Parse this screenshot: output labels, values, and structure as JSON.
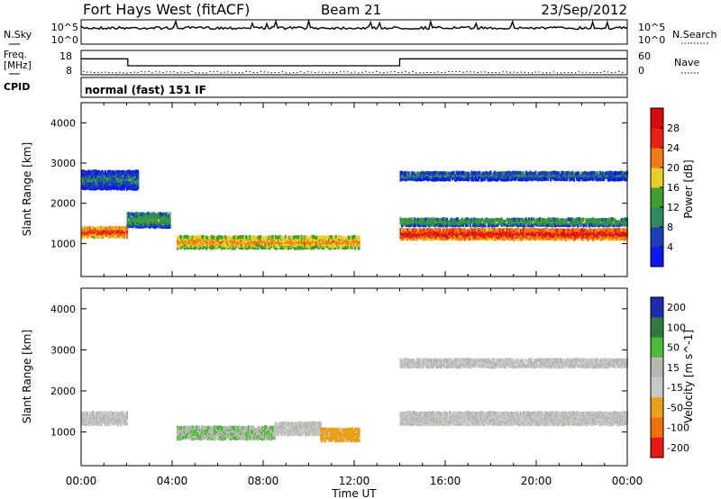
{
  "header": {
    "title": "Fort Hays West (fitACF)",
    "beam": "Beam 21",
    "date": "23/Sep/2012"
  },
  "noise_panel": {
    "left_label": "N.Sky",
    "right_label": "N.Search",
    "left_ticks": [
      "10^5",
      "10^0"
    ],
    "right_ticks": [
      "10^5",
      "10^0"
    ]
  },
  "freq_panel": {
    "left_label_line1": "Freq.",
    "left_label_line2": "[MHz]",
    "right_label": "Nave",
    "left_ticks": [
      "18",
      "8"
    ],
    "right_ticks": [
      "60",
      "0"
    ],
    "freq_segments": [
      {
        "start_hour": 0.0,
        "end_hour": 2.05,
        "mhz": 15.2
      },
      {
        "start_hour": 2.05,
        "end_hour": 14.0,
        "mhz": 11.2
      },
      {
        "start_hour": 14.0,
        "end_hour": 24.0,
        "mhz": 15.2
      }
    ]
  },
  "cpid": {
    "label": "CPID",
    "text": "normal (fast) 151 IF"
  },
  "chart_data": [
    {
      "type": "heatmap",
      "name": "power",
      "ylabel": "Slant Range [km]",
      "xlim": [
        0,
        24
      ],
      "ylim": [
        180,
        4500
      ],
      "yticks": [
        "1000",
        "2000",
        "3000",
        "4000"
      ],
      "colorbar": {
        "label": "Power [dB]",
        "ticks": [
          "4",
          "8",
          "12",
          "16",
          "20",
          "24",
          "28"
        ],
        "range": [
          0,
          32
        ],
        "colors": [
          "#0a18f0",
          "#1b3fb4",
          "#2f8a60",
          "#3fa030",
          "#e8d028",
          "#ef7a18",
          "#ea2010",
          "#d80a0a"
        ]
      },
      "echo_bands": [
        {
          "start_hour": 0.0,
          "end_hour": 2.0,
          "center_km": 1300,
          "width_km": 250,
          "power_db": 22
        },
        {
          "start_hour": 2.0,
          "end_hour": 3.9,
          "center_km": 1600,
          "width_km": 350,
          "power_db": 10
        },
        {
          "start_hour": 4.2,
          "end_hour": 12.2,
          "center_km": 1050,
          "width_km": 300,
          "power_db": 18
        },
        {
          "start_hour": 14.0,
          "end_hour": 24.0,
          "center_km": 1250,
          "width_km": 260,
          "power_db": 24
        },
        {
          "start_hour": 14.0,
          "end_hour": 24.0,
          "center_km": 1550,
          "width_km": 180,
          "power_db": 10
        },
        {
          "start_hour": 0.0,
          "end_hour": 2.5,
          "center_km": 2600,
          "width_km": 450,
          "power_db": 6
        },
        {
          "start_hour": 14.0,
          "end_hour": 24.0,
          "center_km": 2700,
          "width_km": 200,
          "power_db": 6
        }
      ]
    },
    {
      "type": "heatmap",
      "name": "velocity",
      "ylabel": "Slant Range [km]",
      "xlabel": "Time UT",
      "xlim": [
        0,
        24
      ],
      "ylim": [
        180,
        4500
      ],
      "yticks": [
        "1000",
        "2000",
        "3000",
        "4000"
      ],
      "xticks": [
        "00:00",
        "04:00",
        "08:00",
        "12:00",
        "16:00",
        "20:00",
        "00:00"
      ],
      "colorbar": {
        "label": "Velocity [m s^-1]",
        "ticks": [
          "200",
          "100",
          "50",
          "15",
          "-15",
          "-50",
          "-100",
          "-200"
        ],
        "colors": [
          "#1c2bb0",
          "#2f7a3e",
          "#4cbb3a",
          "#b8b8b0",
          "#c8c8c4",
          "#e8a018",
          "#f07010",
          "#e81810"
        ]
      },
      "echo_bands": [
        {
          "start_hour": 0.0,
          "end_hour": 2.0,
          "center_km": 1350,
          "width_km": 300,
          "velocity": 0
        },
        {
          "start_hour": 4.2,
          "end_hour": 8.5,
          "center_km": 1000,
          "width_km": 300,
          "velocity": 30
        },
        {
          "start_hour": 8.5,
          "end_hour": 10.5,
          "center_km": 1100,
          "width_km": 300,
          "velocity": 0
        },
        {
          "start_hour": 10.5,
          "end_hour": 12.2,
          "center_km": 950,
          "width_km": 300,
          "velocity": -40
        },
        {
          "start_hour": 14.0,
          "end_hour": 24.0,
          "center_km": 1350,
          "width_km": 300,
          "velocity": 0
        },
        {
          "start_hour": 14.0,
          "end_hour": 24.0,
          "center_km": 2700,
          "width_km": 200,
          "velocity": 0
        }
      ]
    }
  ]
}
